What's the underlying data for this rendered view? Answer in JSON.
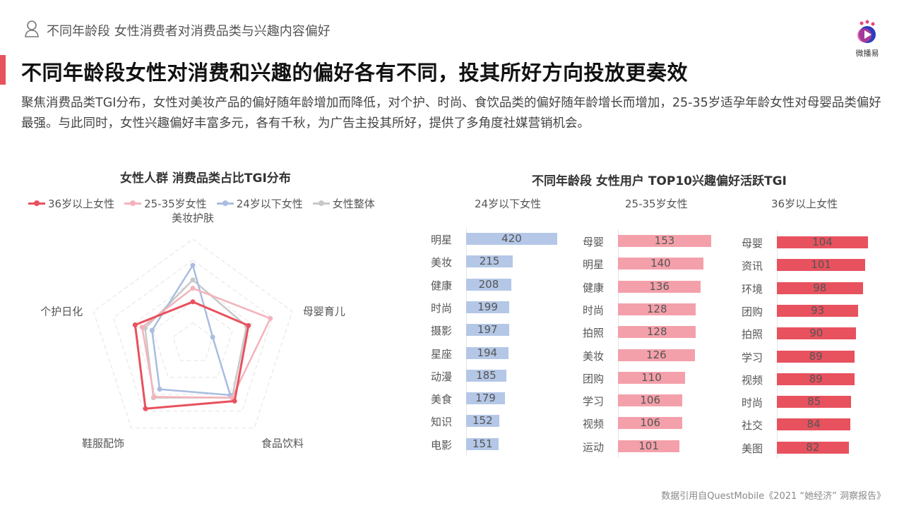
{
  "header": {
    "topic": "不同年龄段 女性消费者对消费品类与兴趣内容偏好",
    "headline": "不同年龄段女性对消费和兴趣的偏好各有不同，投其所好方向投放更奏效",
    "description": "聚焦消费品类TGI分布，女性对美妆产品的偏好随年龄增加而降低，对个护、时尚、食饮品类的偏好随年龄增长而增加，25-35岁适孕年龄女性对母婴品类偏好最强。与此同时，女性兴趣偏好丰富多元，各有千秋，为广告主投其所好，提供了多角度社媒营销机会。",
    "logo_text": "微播易"
  },
  "footer": {
    "source": "数据引用自QuestMobile《2021 “她经济” 洞察报告》"
  },
  "chart_data": [
    {
      "type": "radar",
      "title": "女性人群 消费品类占比TGI分布",
      "axes": [
        "美妆护肤",
        "母婴育儿",
        "食品饮料",
        "鞋服配饰",
        "个护日化"
      ],
      "value_scale": "fraction of max radius (no axis ticks shown)",
      "series": [
        {
          "name": "36岁以上女性",
          "color": "#e8515e",
          "values": [
            0.4,
            0.56,
            0.68,
            0.77,
            0.58
          ]
        },
        {
          "name": "25-35岁女性",
          "color": "#f4b3bb",
          "values": [
            0.53,
            0.78,
            0.64,
            0.63,
            0.51
          ]
        },
        {
          "name": "24岁以下女性",
          "color": "#a9bde0",
          "values": [
            0.75,
            0.2,
            0.61,
            0.54,
            0.41
          ]
        },
        {
          "name": "女性整体",
          "color": "#c8c8c8",
          "values": [
            0.61,
            0.54,
            0.64,
            0.64,
            0.48
          ]
        }
      ],
      "legend": "top"
    },
    {
      "type": "bar",
      "title": "不同年龄段 女性用户 TOP10兴趣偏好活跃TGI",
      "groups": [
        {
          "name": "24岁以下女性",
          "color": "#b4c7e7",
          "categories": [
            "明星",
            "美妆",
            "健康",
            "时尚",
            "摄影",
            "星座",
            "动漫",
            "美食",
            "知识",
            "电影"
          ],
          "values": [
            420,
            215,
            208,
            199,
            197,
            194,
            185,
            179,
            152,
            151
          ]
        },
        {
          "name": "25-35岁女性",
          "color": "#f4a0aa",
          "categories": [
            "母婴",
            "明星",
            "健康",
            "时尚",
            "拍照",
            "美妆",
            "团购",
            "学习",
            "视频",
            "运动"
          ],
          "values": [
            153,
            140,
            136,
            128,
            128,
            126,
            110,
            106,
            106,
            101
          ]
        },
        {
          "name": "36岁以上女性",
          "color": "#e8515e",
          "categories": [
            "母婴",
            "资讯",
            "环境",
            "团购",
            "拍照",
            "学习",
            "视频",
            "时尚",
            "社交",
            "美图"
          ],
          "values": [
            104,
            101,
            98,
            93,
            90,
            89,
            89,
            85,
            84,
            82
          ]
        }
      ]
    }
  ]
}
